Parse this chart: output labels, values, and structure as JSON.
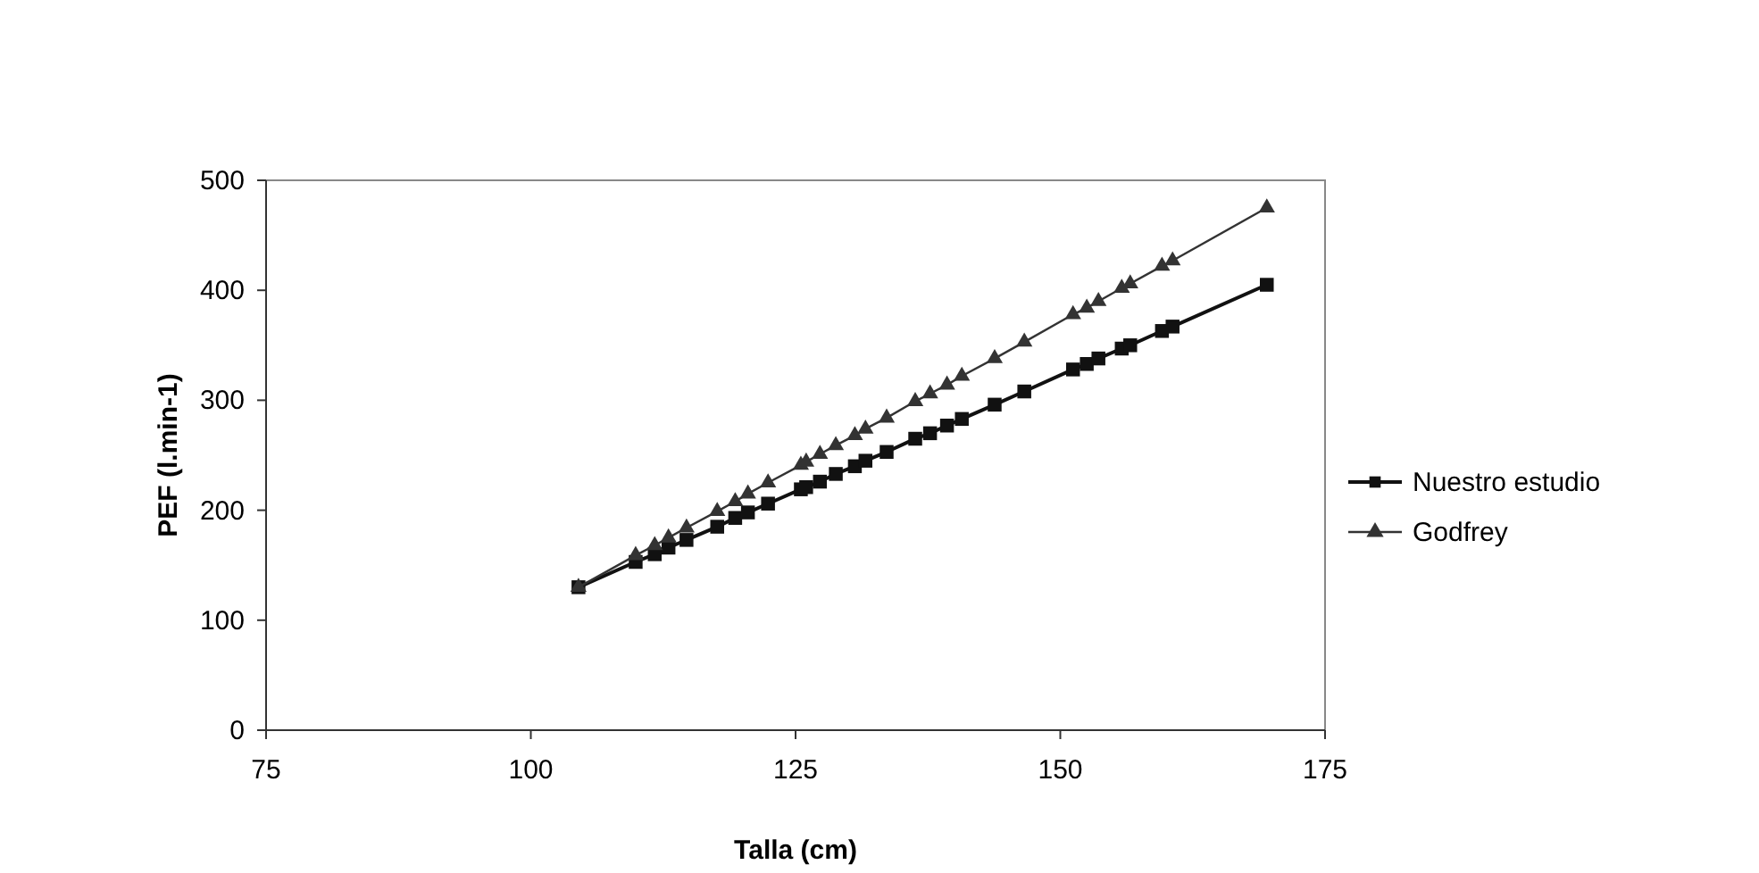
{
  "chart_data": {
    "type": "line",
    "xlabel": "Talla (cm)",
    "ylabel": "PEF (l.min-1)",
    "xlim": [
      75,
      175
    ],
    "xticks": [
      75,
      100,
      125,
      150,
      175
    ],
    "ylim": [
      0,
      500
    ],
    "yticks": [
      0,
      100,
      200,
      300,
      400,
      500
    ],
    "grid": false,
    "legend": "right",
    "x": [
      104.5,
      109.9,
      111.7,
      113.0,
      114.7,
      117.6,
      119.3,
      120.5,
      122.4,
      125.5,
      126.0,
      127.3,
      128.8,
      130.6,
      131.6,
      133.6,
      136.3,
      137.7,
      139.3,
      140.7,
      143.8,
      146.6,
      151.2,
      152.5,
      153.6,
      155.8,
      156.6,
      159.6,
      160.6,
      169.5
    ],
    "series": [
      {
        "name": "Nuestro estudio",
        "color": "#111111",
        "marker": "square",
        "values": [
          130,
          153,
          160,
          166,
          173,
          185,
          193,
          198,
          206,
          219,
          221,
          226,
          233,
          240,
          245,
          253,
          265,
          270,
          277,
          283,
          296,
          308,
          328,
          333,
          338,
          347,
          350,
          363,
          367,
          405
        ]
      },
      {
        "name": "Godfrey",
        "color": "#333333",
        "marker": "triangle",
        "values": [
          130,
          159,
          168,
          175,
          184,
          199,
          208,
          215,
          225,
          241,
          244,
          251,
          259,
          268,
          274,
          284,
          299,
          306,
          314,
          322,
          338,
          353,
          378,
          384,
          390,
          402,
          406,
          422,
          427,
          475
        ]
      }
    ]
  }
}
